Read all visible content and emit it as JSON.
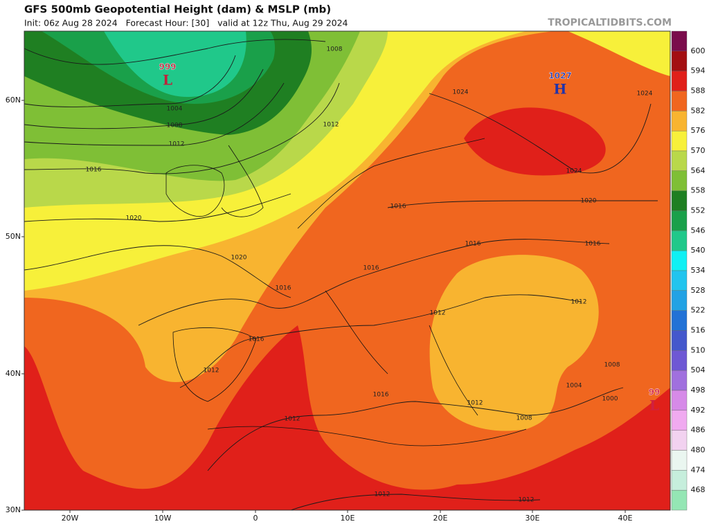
{
  "header": {
    "title": "GFS 500mb Geopotential Height (dam) & MSLP (mb)",
    "subtitle": "Init: 06z Aug 28 2024   Forecast Hour: [30]   valid at 12z Thu, Aug 29 2024",
    "site": "TROPICALTIDBITS.COM"
  },
  "map": {
    "lat_labels": [
      "60N",
      "50N",
      "40N",
      "30N"
    ],
    "lon_labels": [
      "20W",
      "10W",
      "0",
      "10E",
      "20E",
      "30E",
      "40E"
    ],
    "pressure_centers": [
      {
        "value": "999",
        "letter": "L"
      },
      {
        "value": "1027",
        "letter": "H"
      },
      {
        "value": "99",
        "letter": "L"
      }
    ],
    "isobar_labels": [
      "1008",
      "1004",
      "1008",
      "1012",
      "1016",
      "1020",
      "1020",
      "1016",
      "1016",
      "1012",
      "1016",
      "1012",
      "1012",
      "1012",
      "1016",
      "1016",
      "1012",
      "1012",
      "1008",
      "1004",
      "1000",
      "1008",
      "1012",
      "1016",
      "1016",
      "1020",
      "1024",
      "1024",
      "1024",
      "1012"
    ]
  },
  "colorbar": {
    "levels": [
      "600",
      "594",
      "588",
      "582",
      "576",
      "570",
      "564",
      "558",
      "552",
      "546",
      "540",
      "534",
      "528",
      "522",
      "516",
      "510",
      "504",
      "498",
      "492",
      "486",
      "480",
      "474",
      "468"
    ],
    "colors": [
      "#7a0c4c",
      "#a30f12",
      "#e0201a",
      "#f0661f",
      "#f8b430",
      "#f7f03a",
      "#b9d84a",
      "#7fbf36",
      "#1f7f22",
      "#1aa04a",
      "#20c88a",
      "#10f0f4",
      "#22c4ee",
      "#22a2e4",
      "#2272d6",
      "#4458cc",
      "#6e58d4",
      "#a070de",
      "#d68ae8",
      "#f0aaf0",
      "#f2d2f0",
      "#eaf6f0",
      "#c6eedc",
      "#94e6b4"
    ]
  }
}
